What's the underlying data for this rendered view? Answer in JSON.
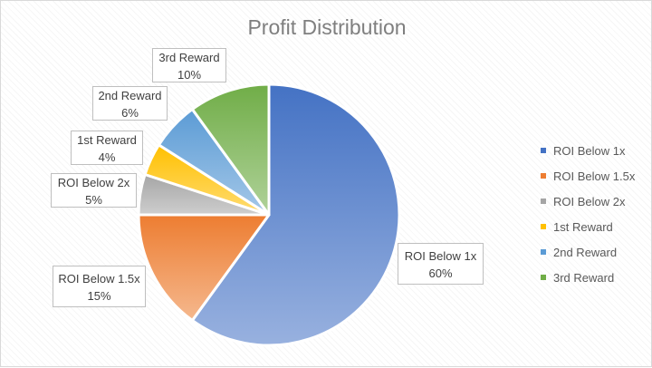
{
  "chart_data": {
    "type": "pie",
    "title": "Profit Distribution",
    "categories": [
      "ROI Below 1x",
      "ROI Below 1.5x",
      "ROI Below 2x",
      "1st Reward",
      "2nd Reward",
      "3rd Reward"
    ],
    "values": [
      60,
      15,
      5,
      4,
      6,
      10
    ],
    "value_labels": [
      "60%",
      "15%",
      "5%",
      "4%",
      "6%",
      "10%"
    ],
    "colors": [
      "#4472C4",
      "#ED7D31",
      "#A5A5A5",
      "#FFC000",
      "#5B9BD5",
      "#70AD47"
    ],
    "legend_position": "right",
    "start_angle_deg": 0,
    "direction": "clockwise"
  }
}
